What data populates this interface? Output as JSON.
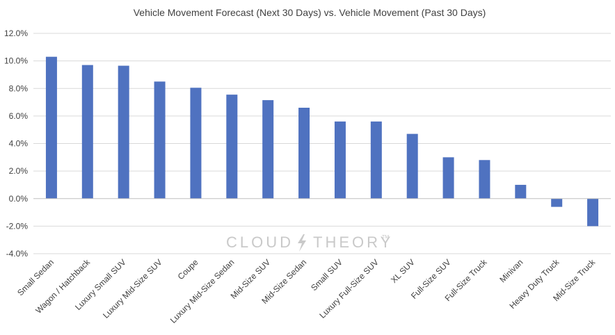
{
  "chart_data": {
    "type": "bar",
    "title": "Vehicle Movement Forecast (Next 30 Days) vs. Vehicle Movement (Past 30 Days)",
    "xlabel": "",
    "ylabel": "",
    "ylim": [
      -4.0,
      12.0
    ],
    "yticks": [
      12,
      10,
      8,
      6,
      4,
      2,
      0,
      -2,
      -4
    ],
    "ytick_labels": [
      "12.0%",
      "10.0%",
      "8.0%",
      "6.0%",
      "4.0%",
      "2.0%",
      "0.0%",
      "-2.0%",
      "-4.0%"
    ],
    "grid": true,
    "legend": "none",
    "bar_color": "#4f72c0",
    "categories": [
      "Small Sedan",
      "Wagon / Hatchback",
      "Luxury Small SUV",
      "Luxury Mid-Size SUV",
      "Coupe",
      "Luxury Mid-Size Sedan",
      "Mid-Size SUV",
      "Mid-Size Sedan",
      "Small SUV",
      "Luxury Full-Size SUV",
      "XL SUV",
      "Full-Size SUV",
      "Full-Size Truck",
      "Minivan",
      "Heavy Duty Truck",
      "Mid-Size Truck"
    ],
    "values": [
      10.3,
      9.7,
      9.65,
      8.5,
      8.05,
      7.55,
      7.15,
      6.6,
      5.6,
      5.6,
      4.7,
      3.0,
      2.8,
      1.0,
      -0.6,
      -2.0
    ]
  },
  "watermark": {
    "left": "CLOUD",
    "right": "THEORY",
    "mark": "TM",
    "icon": "lightning-bolt-icon",
    "color": "#c9c9c9"
  }
}
